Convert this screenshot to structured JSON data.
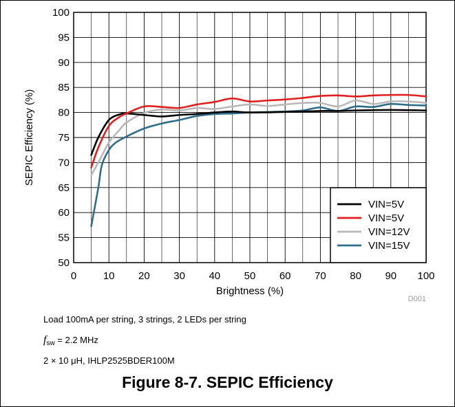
{
  "chart_data": {
    "type": "line",
    "xlabel": "Brightness (%)",
    "ylabel": "SEPIC Efficiency (%)",
    "xlim": [
      0,
      100
    ],
    "ylim": [
      50,
      100
    ],
    "xticks": [
      0,
      10,
      20,
      30,
      40,
      50,
      60,
      70,
      80,
      90,
      100
    ],
    "yticks": [
      50,
      55,
      60,
      65,
      70,
      75,
      80,
      85,
      90,
      95,
      100
    ],
    "grid": true,
    "legend_position": "bottom-right",
    "figure_id": "D001",
    "series": [
      {
        "name": "VIN=5V",
        "color": "#000000",
        "x": [
          5,
          7,
          10,
          13,
          15,
          20,
          25,
          30,
          35,
          40,
          45,
          50,
          60,
          70,
          75,
          80,
          90,
          100
        ],
        "y": [
          71.5,
          75,
          78.5,
          79.6,
          79.8,
          79.5,
          79.2,
          79.5,
          79.7,
          80,
          80.2,
          80,
          80.1,
          80.3,
          80.3,
          80.4,
          80.5,
          80.4
        ]
      },
      {
        "name": "VIN=5V",
        "color": "#e0201e",
        "x": [
          5,
          7,
          10,
          13,
          15,
          20,
          25,
          30,
          35,
          40,
          45,
          50,
          55,
          60,
          65,
          70,
          75,
          80,
          85,
          90,
          95,
          100
        ],
        "y": [
          69,
          73,
          77.3,
          79.1,
          79.8,
          81.2,
          81.1,
          80.9,
          81.6,
          82.1,
          82.8,
          82.2,
          82.4,
          82.6,
          82.9,
          83.3,
          83.4,
          83.2,
          83.4,
          83.5,
          83.5,
          83.2
        ]
      },
      {
        "name": "VIN=12V",
        "color": "#b8b8b8",
        "x": [
          5,
          7,
          10,
          13,
          15,
          20,
          25,
          30,
          35,
          40,
          45,
          50,
          55,
          60,
          65,
          70,
          75,
          80,
          85,
          90,
          95,
          100
        ],
        "y": [
          67.5,
          70,
          74,
          76.5,
          78,
          79.9,
          80.6,
          80.4,
          80.9,
          80.7,
          81.2,
          81.6,
          81.3,
          81.6,
          81.9,
          81.9,
          81.2,
          82.4,
          81.7,
          82.2,
          82.2,
          81.9
        ]
      },
      {
        "name": "VIN=15V",
        "color": "#2e6e8a",
        "x": [
          5,
          7,
          8,
          10,
          12,
          15,
          20,
          25,
          30,
          35,
          40,
          45,
          50,
          55,
          60,
          65,
          70,
          75,
          80,
          85,
          90,
          95,
          100
        ],
        "y": [
          57.3,
          65,
          69.5,
          72.5,
          74,
          75.2,
          76.8,
          77.8,
          78.5,
          79.3,
          79.7,
          79.8,
          80,
          80.1,
          80.2,
          80.4,
          81,
          80.3,
          81.2,
          81.1,
          81.7,
          81.5,
          81.4
        ]
      }
    ]
  },
  "notes": {
    "line1": "Load 100mA per string, 3 strings, 2 LEDs per string",
    "fsw_symbol": "f",
    "fsw_subscript": "sw",
    "fsw_value": " = 2.2 MHz",
    "line3": "2 × 10 μH, IHLP2525BDER100M"
  },
  "caption": "Figure 8-7. SEPIC Efficiency"
}
